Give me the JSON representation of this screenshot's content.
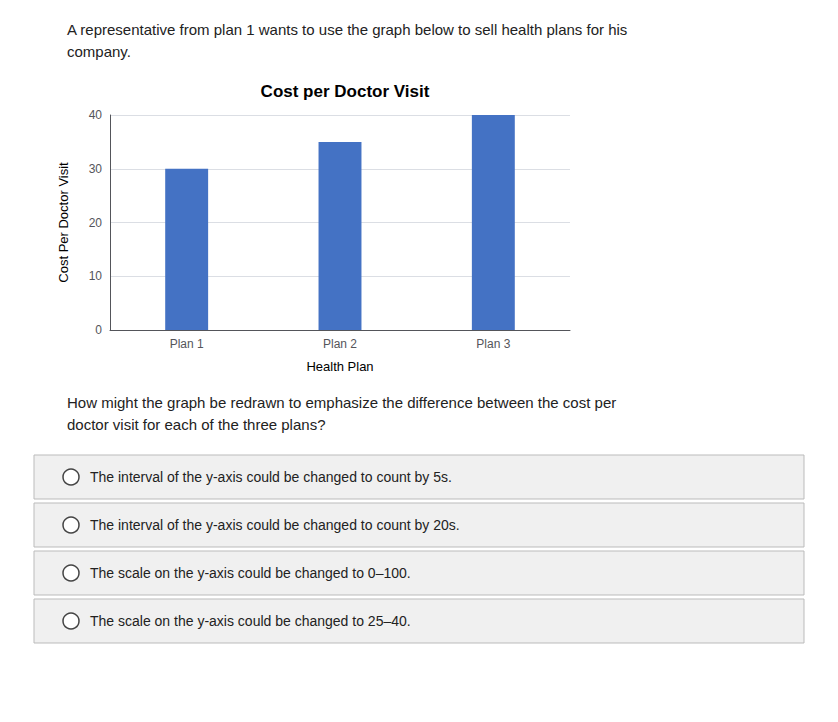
{
  "chart_data": {
    "type": "bar",
    "title": "Cost per Doctor Visit",
    "xlabel": "Health Plan",
    "ylabel": "Cost Per Doctor Visit",
    "categories": [
      "Plan 1",
      "Plan 2",
      "Plan 3"
    ],
    "values": [
      30,
      35,
      40
    ],
    "color": "#4472c4",
    "ylim": [
      0,
      40
    ],
    "yticks": [
      0,
      10,
      20,
      30,
      40
    ],
    "grid": true,
    "annotations": [
      "A representative from plan 1 wants to use the graph below to sell health plans for his",
      "company.",
      "How might the graph be redrawn to emphasize the difference between the cost per",
      "doctor visit for each of the three plans?",
      "The interval of the y-axis could be changed to count by 5s.",
      "The interval of the y-axis could be changed to count by 20s.",
      "The scale on the y-axis could be changed to 0–100.",
      "The scale on the y-axis could be changed to 25–40."
    ]
  }
}
